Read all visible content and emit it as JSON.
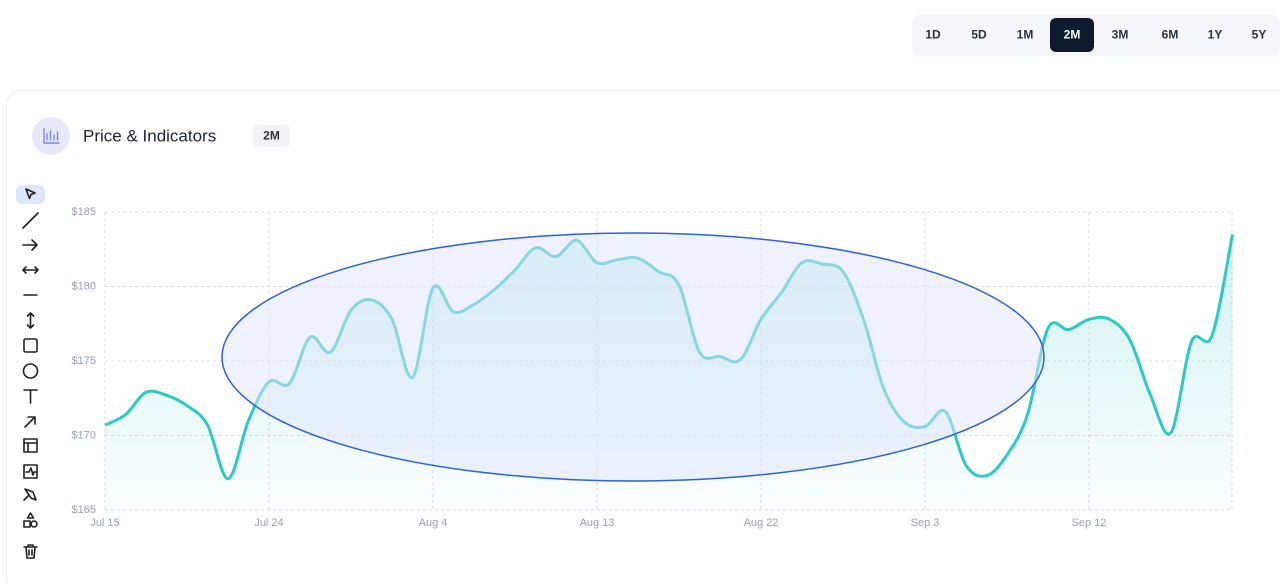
{
  "timeframes": {
    "options": [
      "1D",
      "5D",
      "1M",
      "2M",
      "3M",
      "6M",
      "1Y",
      "5Y"
    ],
    "active_index": 3
  },
  "panel": {
    "title": "Price & Indicators",
    "badge": "2M"
  },
  "chart_data": {
    "type": "line",
    "categories": [
      "Jul 15",
      null,
      null,
      null,
      null,
      null,
      null,
      null,
      "Jul 24",
      null,
      null,
      null,
      null,
      null,
      null,
      null,
      "Aug 4",
      null,
      null,
      null,
      null,
      null,
      null,
      null,
      "Aug 13",
      null,
      null,
      null,
      null,
      null,
      null,
      null,
      "Aug 22",
      null,
      null,
      null,
      null,
      null,
      null,
      null,
      "Sep 3",
      null,
      null,
      null,
      null,
      null,
      null,
      null,
      "Sep 12",
      null,
      null,
      null,
      null,
      null,
      null,
      null
    ],
    "series": [
      {
        "color": "#2ec9c4",
        "values": [
          170.7,
          171.4,
          172.9,
          172.7,
          172.0,
          170.7,
          167.1,
          171.0,
          173.6,
          173.5,
          176.6,
          175.6,
          178.4,
          179.1,
          177.8,
          173.9,
          179.9,
          178.3,
          178.8,
          179.8,
          181.1,
          182.6,
          182.0,
          183.1,
          181.6,
          181.8,
          181.9,
          181.0,
          180.1,
          175.6,
          175.3,
          175.1,
          177.8,
          179.6,
          181.6,
          181.5,
          181.0,
          177.8,
          173.1,
          170.9,
          170.6,
          171.6,
          168.0,
          167.3,
          168.7,
          171.4,
          177.2,
          177.1,
          177.8,
          177.8,
          176.4,
          172.7,
          170.2,
          176.3,
          176.7,
          183.5
        ]
      }
    ],
    "ylim": [
      165,
      185
    ],
    "yticks": [
      {
        "value": 165,
        "label": "$165"
      },
      {
        "value": 170,
        "label": "$170"
      },
      {
        "value": 175,
        "label": "$175"
      },
      {
        "value": 180,
        "label": "$180"
      },
      {
        "value": 185,
        "label": "$185"
      }
    ],
    "grid": true
  }
}
